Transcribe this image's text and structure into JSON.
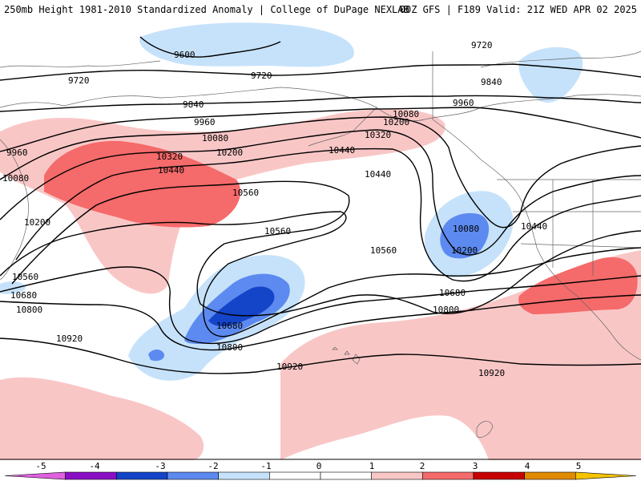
{
  "header": {
    "left": "250mb Height 1981-2010 Standardized Anomaly | College of DuPage NEXLAB",
    "right": "00Z GFS | F189 Valid: 21Z WED APR 02 2025"
  },
  "anomaly_colors": {
    "neg_light": "#c6e2fb",
    "neg_medium": "#5d8af0",
    "neg_dark": "#1444c8",
    "pos_light": "#f9c6c6",
    "pos_medium": "#f56a6a",
    "pos_dark": "#c70000"
  },
  "contour_labels": [
    "9600",
    "9720",
    "9720",
    "9720",
    "9840",
    "9840",
    "9960",
    "9960",
    "9960",
    "10080",
    "10080",
    "10080",
    "10080",
    "10200",
    "10200",
    "10200",
    "10200",
    "10320",
    "10320",
    "10440",
    "10440",
    "10440",
    "10440",
    "10560",
    "10560",
    "10560",
    "10560",
    "10680",
    "10680",
    "10680",
    "10800",
    "10800",
    "10800",
    "10920",
    "10920",
    "10920"
  ],
  "colorbar": {
    "ticks": [
      "-5",
      "-4",
      "-3",
      "-2",
      "-1",
      "0",
      "1",
      "2",
      "3",
      "4",
      "5"
    ],
    "colors": [
      "#e060e0",
      "#8a0fc4",
      "#1444c8",
      "#5d8af0",
      "#c6e2fb",
      "#ffffff",
      "#ffffff",
      "#f9c6c6",
      "#f56a6a",
      "#c70000",
      "#e08a00",
      "#f5c400"
    ]
  }
}
